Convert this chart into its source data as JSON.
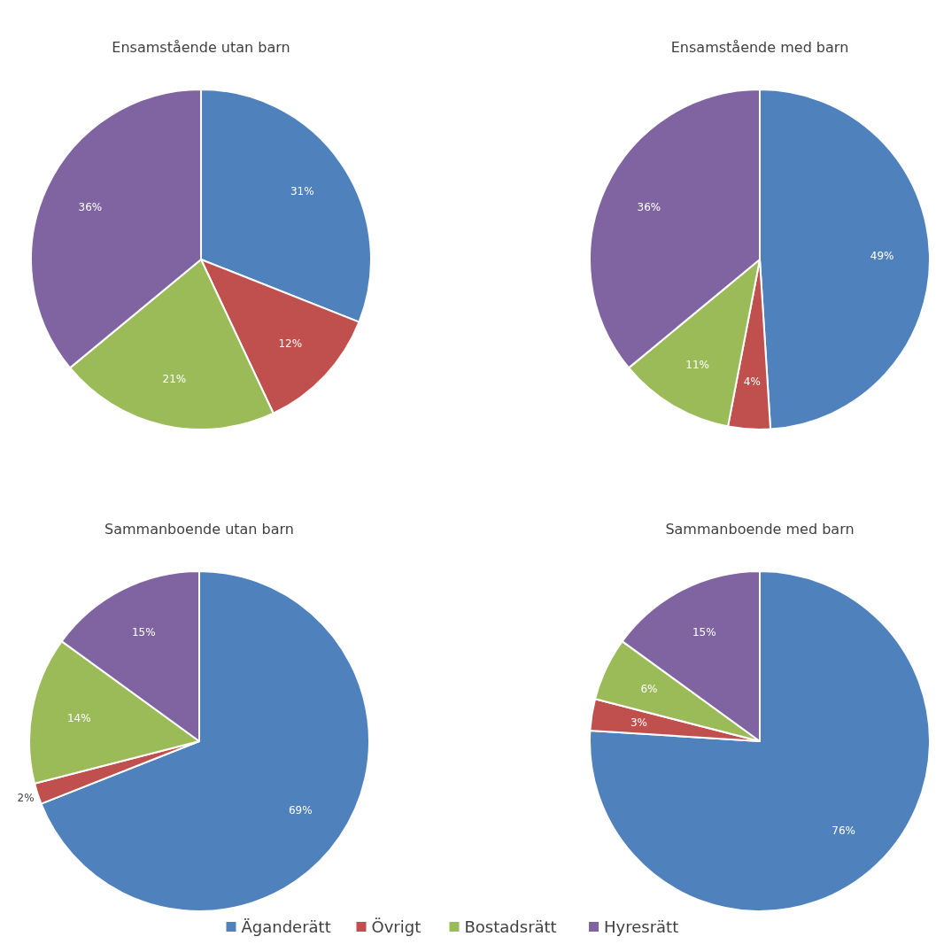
{
  "chart_data": [
    {
      "type": "pie",
      "title": "Ensamstående utan barn",
      "categories": [
        "Äganderätt",
        "Övrigt",
        "Bostadsrätt",
        "Hyresrätt"
      ],
      "values": [
        31,
        12,
        21,
        36
      ],
      "value_labels": [
        "31%",
        "12%",
        "21%",
        "36%"
      ],
      "colors": [
        "#4f81bd",
        "#c0504d",
        "#9bbb59",
        "#8064a2"
      ],
      "legend": "bottom"
    },
    {
      "type": "pie",
      "title": "Ensamstående med barn",
      "categories": [
        null,
        null,
        null,
        null
      ],
      "values": [
        49,
        4,
        11,
        36
      ],
      "value_labels": [
        "49%",
        "4%",
        "11%",
        "36%"
      ],
      "colors": [
        "#4f81bd",
        "#c0504d",
        "#9bbb59",
        "#8064a2"
      ]
    },
    {
      "type": "pie",
      "title": "Sammanboende utan barn",
      "categories": [
        null,
        null,
        null,
        null
      ],
      "values": [
        69,
        2,
        14,
        15
      ],
      "value_labels": [
        "69%",
        "2%",
        "14%",
        "15%"
      ],
      "colors": [
        "#4f81bd",
        "#c0504d",
        "#9bbb59",
        "#8064a2"
      ]
    },
    {
      "type": "pie",
      "title": "Sammanboende med barn",
      "categories": [
        null,
        null,
        null,
        null
      ],
      "values": [
        76,
        3,
        6,
        15
      ],
      "value_labels": [
        "76%",
        "3%",
        "6%",
        "15%"
      ],
      "colors": [
        "#4f81bd",
        "#c0504d",
        "#9bbb59",
        "#8064a2"
      ]
    }
  ]
}
